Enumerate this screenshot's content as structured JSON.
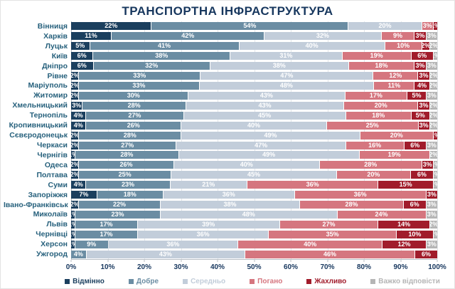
{
  "title": "ТРАНСПОРТНА ІНФРАСТРУКТУРА",
  "chart_data": {
    "type": "bar",
    "stacked": true,
    "orientation": "horizontal",
    "title": "ТРАНСПОРТНА ІНФРАСТРУКТУРА",
    "xlabel": "",
    "ylabel": "",
    "xlim": [
      0,
      100
    ],
    "grid": true,
    "legend_position": "bottom",
    "value_suffix": "%",
    "x_ticks": [
      "0%",
      "10%",
      "20%",
      "30%",
      "40%",
      "50%",
      "60%",
      "70%",
      "80%",
      "90%",
      "100%"
    ],
    "categories": [
      "Вінниця",
      "Харків",
      "Луцьк",
      "Київ",
      "Дніпро",
      "Рівне",
      "Маріуполь",
      "Житомир",
      "Хмельницький",
      "Тернопіль",
      "Кропивницький",
      "Сєвєродонецьк",
      "Черкаси",
      "Чернігів",
      "Одеса",
      "Полтава",
      "Суми",
      "Запоріжжя",
      "Івано-Франківськ",
      "Миколаїв",
      "Львів",
      "Чернівці",
      "Херсон",
      "Ужгород"
    ],
    "series": [
      {
        "name": "Відмінно",
        "color": "#1b3f5e",
        "values": [
          22,
          11,
          5,
          6,
          6,
          2,
          2,
          2,
          3,
          4,
          4,
          2,
          2,
          1,
          2,
          2,
          4,
          7,
          2,
          1,
          1,
          1,
          1,
          0
        ]
      },
      {
        "name": "Добре",
        "color": "#6b8da3",
        "values": [
          54,
          42,
          41,
          38,
          32,
          33,
          33,
          30,
          28,
          27,
          26,
          28,
          27,
          28,
          26,
          25,
          23,
          18,
          22,
          23,
          17,
          17,
          9,
          4
        ]
      },
      {
        "name": "Середньо",
        "color": "#c2cdda",
        "values": [
          20,
          32,
          40,
          31,
          38,
          47,
          48,
          43,
          43,
          45,
          40,
          49,
          47,
          49,
          40,
          45,
          21,
          36,
          38,
          48,
          39,
          36,
          36,
          43
        ]
      },
      {
        "name": "Погано",
        "color": "#d5767f",
        "values": [
          3,
          9,
          10,
          19,
          18,
          12,
          11,
          17,
          20,
          18,
          25,
          20,
          16,
          19,
          28,
          20,
          36,
          36,
          28,
          24,
          27,
          35,
          40,
          46
        ]
      },
      {
        "name": "Жахливо",
        "color": "#a11c2b",
        "values": [
          1,
          3,
          2,
          6,
          3,
          3,
          4,
          5,
          3,
          5,
          3,
          1,
          6,
          0,
          3,
          6,
          15,
          3,
          6,
          0,
          14,
          10,
          12,
          6
        ]
      },
      {
        "name": "Важко відповісти",
        "color": "#b5b5b5",
        "values": [
          0,
          3,
          2,
          1,
          3,
          2,
          2,
          3,
          2,
          2,
          2,
          0,
          3,
          2,
          1,
          1,
          1,
          0,
          3,
          3,
          2,
          1,
          3,
          0
        ]
      }
    ]
  }
}
